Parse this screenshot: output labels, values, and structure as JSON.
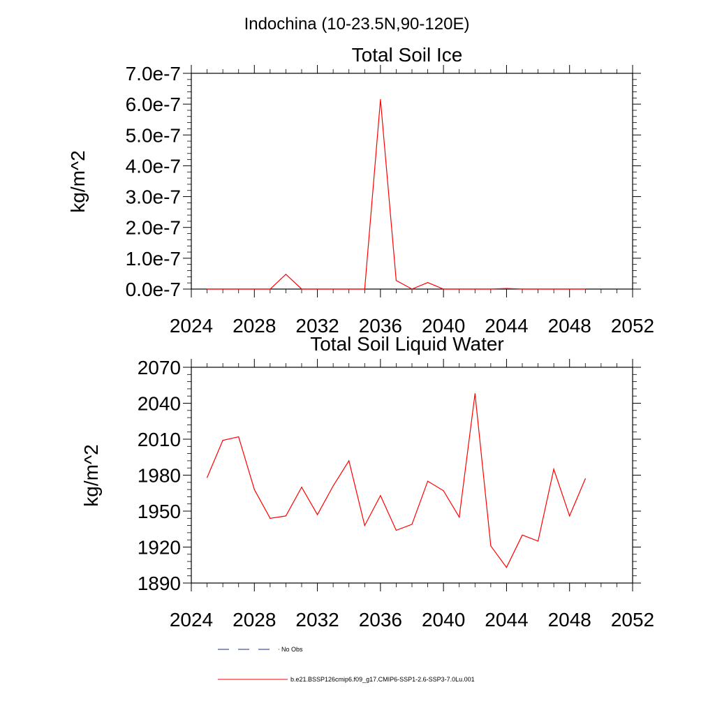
{
  "figure": {
    "suptitle": "Indochina (10-23.5N,90-120E)"
  },
  "colors": {
    "series": "#ff0000",
    "obs": "#1a2a8a",
    "axis": "#000000"
  },
  "legend": {
    "placement": "bottom",
    "entries": [
      {
        "label": "No Obs",
        "style": "dashed",
        "color": "#1a2a8a"
      },
      {
        "label": "b.e21.BSSP126cmip6.f09_g17.CMIP6-SSP1-2.6-SSP3-7.0Lu.001",
        "style": "solid",
        "color": "#ff0000"
      }
    ]
  },
  "chart_data": [
    {
      "type": "line",
      "title": "Total Soil Ice",
      "xlabel": "",
      "ylabel": "kg/m^2",
      "xlim": [
        2024,
        2052
      ],
      "ylim": [
        0,
        7e-07
      ],
      "xticks": [
        "2024",
        "2028",
        "2032",
        "2036",
        "2040",
        "2044",
        "2048",
        "2052"
      ],
      "yticks": [
        "0.0e-7",
        "1.0e-7",
        "2.0e-7",
        "3.0e-7",
        "4.0e-7",
        "5.0e-7",
        "6.0e-7",
        "7.0e-7"
      ],
      "x": [
        2025,
        2026,
        2027,
        2028,
        2029,
        2030,
        2031,
        2032,
        2033,
        2034,
        2035,
        2036,
        2037,
        2038,
        2039,
        2040,
        2041,
        2042,
        2043,
        2044,
        2045,
        2046,
        2047,
        2048,
        2049
      ],
      "values": [
        0,
        0,
        0,
        0,
        0,
        4.8e-08,
        0,
        0,
        0,
        0,
        0,
        6.15e-07,
        2.8e-08,
        0,
        2.1e-08,
        0,
        0,
        0,
        0,
        2e-09,
        0,
        0,
        0,
        0,
        0
      ],
      "grid": false
    },
    {
      "type": "line",
      "title": "Total Soil Liquid Water",
      "xlabel": "",
      "ylabel": "kg/m^2",
      "xlim": [
        2024,
        2052
      ],
      "ylim": [
        1890,
        2070
      ],
      "xticks": [
        "2024",
        "2028",
        "2032",
        "2036",
        "2040",
        "2044",
        "2048",
        "2052"
      ],
      "yticks": [
        "1890",
        "1920",
        "1950",
        "1980",
        "2010",
        "2040",
        "2070"
      ],
      "x": [
        2025,
        2026,
        2027,
        2028,
        2029,
        2030,
        2031,
        2032,
        2033,
        2034,
        2035,
        2036,
        2037,
        2038,
        2039,
        2040,
        2041,
        2042,
        2043,
        2044,
        2045,
        2046,
        2047,
        2048,
        2049
      ],
      "values": [
        1978,
        2009,
        2012,
        1968,
        1944,
        1946,
        1970,
        1947,
        1971,
        1992,
        1938,
        1963,
        1934,
        1939,
        1975,
        1967,
        1945,
        2048,
        1921,
        1903,
        1930,
        1925,
        1985,
        1946,
        1977
      ],
      "grid": false
    }
  ]
}
